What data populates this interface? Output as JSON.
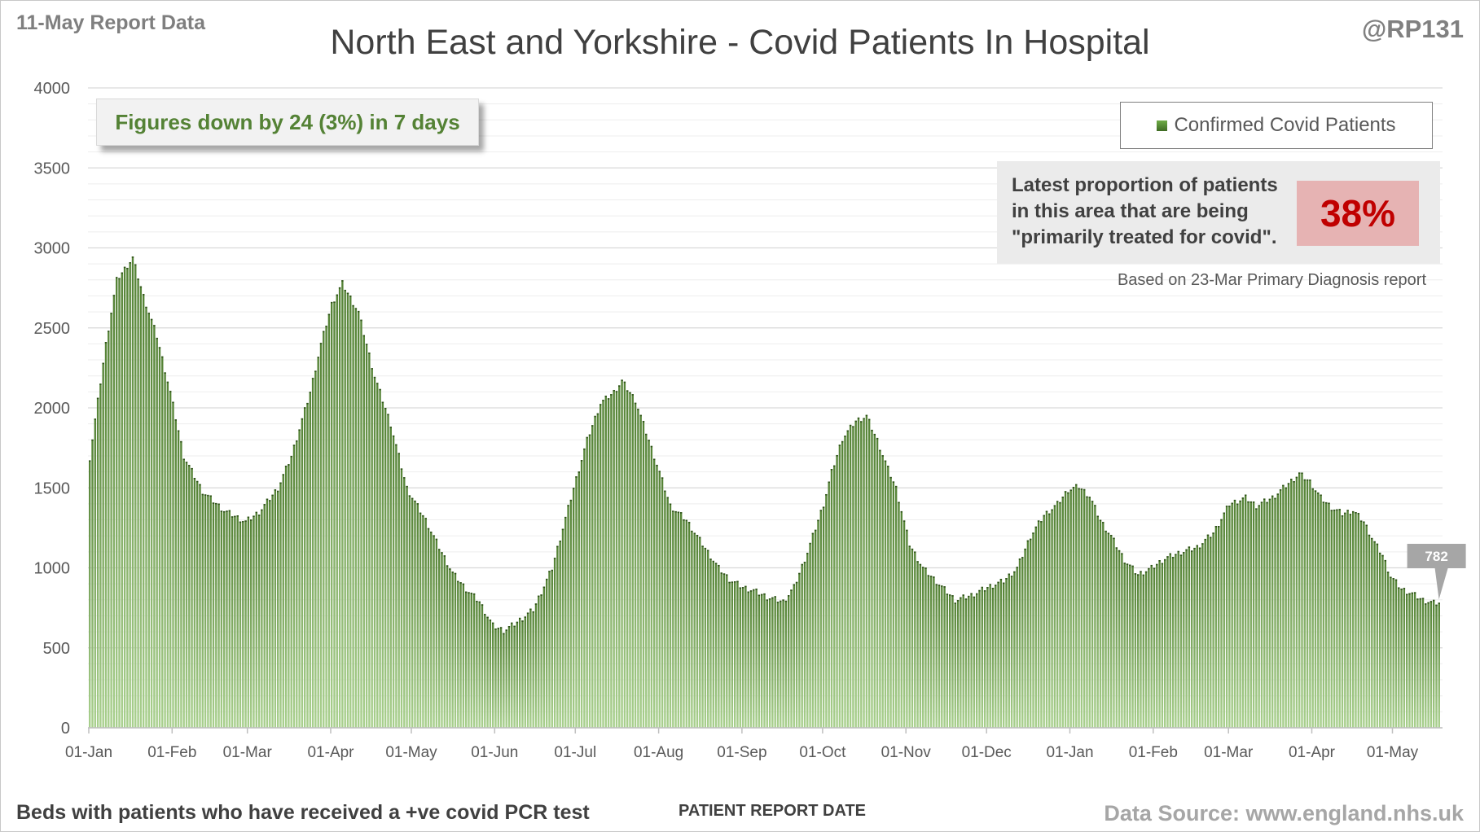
{
  "header": {
    "report_date": "11-May Report Data",
    "author": "@RP131",
    "title": "North East and Yorkshire - Covid Patients In Hospital"
  },
  "callout": {
    "text": "Figures down by 24 (3%) in 7 days"
  },
  "legend": {
    "label": "Confirmed Covid Patients"
  },
  "proportion": {
    "lines": [
      "Latest proportion of patients",
      "in this area that are being",
      "\"primarily treated for covid\"."
    ],
    "value": "38%",
    "note": "Based on 23-Mar Primary Diagnosis report"
  },
  "footer": {
    "left": "Beds with patients who have received a +ve covid PCR test",
    "center": "PATIENT REPORT DATE",
    "right": "Data Source: www.england.nhs.uk"
  },
  "colors": {
    "bar_top": "#548235",
    "bar_bottom": "#a9d08e",
    "gridline": "#d9d9d9",
    "latest_label": "#a6a6a6"
  },
  "chart_data": {
    "type": "bar",
    "title": "North East and Yorkshire - Covid Patients In Hospital",
    "xlabel": "PATIENT REPORT DATE",
    "ylabel": "",
    "ylim": [
      0,
      4000
    ],
    "yticks": [
      0,
      500,
      1000,
      1500,
      2000,
      2500,
      3000,
      3500,
      4000
    ],
    "grid": true,
    "legend_position": "top-right",
    "x_ticks": [
      {
        "label": "01-Jan",
        "day": 0
      },
      {
        "label": "01-Feb",
        "day": 31
      },
      {
        "label": "01-Mar",
        "day": 59
      },
      {
        "label": "01-Apr",
        "day": 90
      },
      {
        "label": "01-May",
        "day": 120
      },
      {
        "label": "01-Jun",
        "day": 151
      },
      {
        "label": "01-Jul",
        "day": 181
      },
      {
        "label": "01-Aug",
        "day": 212
      },
      {
        "label": "01-Sep",
        "day": 243
      },
      {
        "label": "01-Oct",
        "day": 273
      },
      {
        "label": "01-Nov",
        "day": 304
      },
      {
        "label": "01-Dec",
        "day": 334
      },
      {
        "label": "01-Jan",
        "day": 365
      },
      {
        "label": "01-Feb",
        "day": 396
      },
      {
        "label": "01-Mar",
        "day": 424
      },
      {
        "label": "01-Apr",
        "day": 455
      },
      {
        "label": "01-May",
        "day": 485
      }
    ],
    "series": [
      {
        "name": "Confirmed Covid Patients",
        "anchors": [
          [
            0,
            1690
          ],
          [
            6,
            2400
          ],
          [
            10,
            2800
          ],
          [
            16,
            2940
          ],
          [
            20,
            2700
          ],
          [
            25,
            2450
          ],
          [
            30,
            2100
          ],
          [
            35,
            1700
          ],
          [
            42,
            1480
          ],
          [
            50,
            1360
          ],
          [
            58,
            1290
          ],
          [
            63,
            1350
          ],
          [
            70,
            1500
          ],
          [
            75,
            1700
          ],
          [
            82,
            2100
          ],
          [
            86,
            2400
          ],
          [
            90,
            2650
          ],
          [
            94,
            2780
          ],
          [
            100,
            2600
          ],
          [
            106,
            2200
          ],
          [
            112,
            1900
          ],
          [
            118,
            1500
          ],
          [
            125,
            1300
          ],
          [
            130,
            1130
          ],
          [
            135,
            970
          ],
          [
            140,
            870
          ],
          [
            145,
            790
          ],
          [
            150,
            640
          ],
          [
            154,
            610
          ],
          [
            158,
            650
          ],
          [
            165,
            740
          ],
          [
            172,
            1000
          ],
          [
            180,
            1500
          ],
          [
            185,
            1800
          ],
          [
            190,
            2030
          ],
          [
            195,
            2100
          ],
          [
            198,
            2170
          ],
          [
            203,
            2050
          ],
          [
            208,
            1800
          ],
          [
            212,
            1600
          ],
          [
            216,
            1390
          ],
          [
            222,
            1300
          ],
          [
            228,
            1150
          ],
          [
            234,
            1000
          ],
          [
            238,
            930
          ],
          [
            243,
            880
          ],
          [
            247,
            860
          ],
          [
            252,
            820
          ],
          [
            258,
            790
          ],
          [
            262,
            880
          ],
          [
            267,
            1100
          ],
          [
            273,
            1400
          ],
          [
            276,
            1600
          ],
          [
            280,
            1810
          ],
          [
            285,
            1920
          ],
          [
            289,
            1950
          ],
          [
            293,
            1800
          ],
          [
            297,
            1620
          ],
          [
            300,
            1500
          ],
          [
            305,
            1150
          ],
          [
            310,
            1000
          ],
          [
            316,
            900
          ],
          [
            322,
            800
          ],
          [
            328,
            830
          ],
          [
            334,
            880
          ],
          [
            340,
            920
          ],
          [
            345,
            1000
          ],
          [
            350,
            1200
          ],
          [
            355,
            1330
          ],
          [
            360,
            1400
          ],
          [
            364,
            1490
          ],
          [
            368,
            1510
          ],
          [
            372,
            1450
          ],
          [
            376,
            1300
          ],
          [
            380,
            1200
          ],
          [
            385,
            1050
          ],
          [
            390,
            960
          ],
          [
            395,
            1000
          ],
          [
            400,
            1060
          ],
          [
            406,
            1100
          ],
          [
            412,
            1130
          ],
          [
            418,
            1220
          ],
          [
            424,
            1400
          ],
          [
            430,
            1440
          ],
          [
            434,
            1390
          ],
          [
            440,
            1440
          ],
          [
            446,
            1530
          ],
          [
            450,
            1590
          ],
          [
            454,
            1540
          ],
          [
            458,
            1440
          ],
          [
            462,
            1380
          ],
          [
            466,
            1340
          ],
          [
            470,
            1360
          ],
          [
            474,
            1290
          ],
          [
            478,
            1160
          ],
          [
            481,
            1080
          ],
          [
            484,
            950
          ],
          [
            488,
            870
          ],
          [
            492,
            840
          ],
          [
            496,
            800
          ],
          [
            500,
            782
          ],
          [
            502,
            782
          ]
        ],
        "latest_value": 782
      }
    ]
  }
}
